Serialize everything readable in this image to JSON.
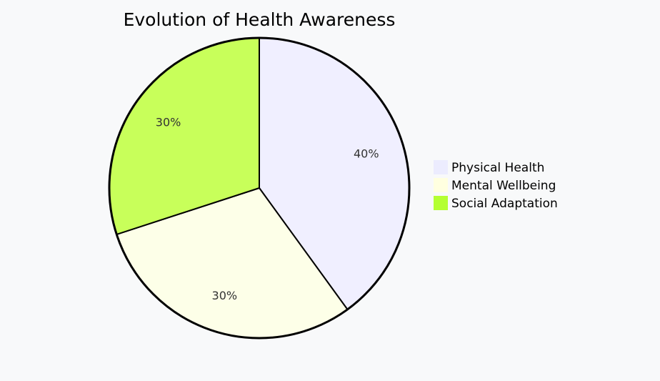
{
  "chart_data": {
    "type": "pie",
    "title": "Evolution of Health Awareness",
    "slices": [
      {
        "label": "Physical Health",
        "value": 40,
        "display": "40%",
        "color": "#f0efff"
      },
      {
        "label": "Mental Wellbeing",
        "value": 30,
        "display": "30%",
        "color": "#fdffe8"
      },
      {
        "label": "Social Adaptation",
        "value": 30,
        "display": "30%",
        "color": "#c8ff5a"
      }
    ],
    "legend_colors": [
      "#ececfe",
      "#ffffe0",
      "#b4ff32"
    ],
    "legend_placement": "right",
    "stroke_color": "#000000"
  }
}
